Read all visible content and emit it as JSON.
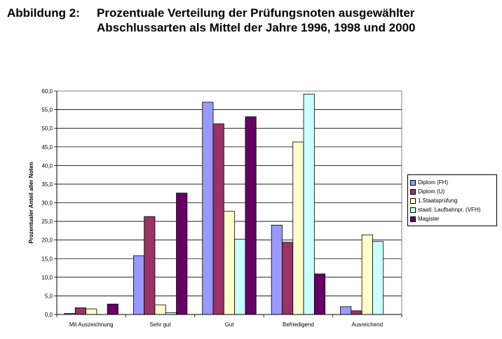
{
  "heading": {
    "label": "Abbildung 2:",
    "line1": "Prozentuale Verteilung der Prüfungsnoten ausgewählter",
    "line2": "Abschlussarten als Mittel der Jahre 1996, 1998 und 2000"
  },
  "chart_data": {
    "type": "bar",
    "title": "Prozentuale Verteilung der Prüfungsnoten ausgewählter Abschlussarten als Mittel der Jahre 1996, 1998 und 2000",
    "ylabel": "Prozentualer Anteil aller Noten",
    "xlabel": "",
    "ylim": [
      0,
      60
    ],
    "y_ticks": [
      "0,0",
      "5,0",
      "10,0",
      "15,0",
      "20,0",
      "25,0",
      "30,0",
      "35,0",
      "40,0",
      "45,0",
      "50,0",
      "55,0",
      "60,0"
    ],
    "grid": true,
    "legend_position": "right",
    "categories": [
      "Mit Auszeichnung",
      "Sehr gut",
      "Gut",
      "Befriedigend",
      "Ausreichend"
    ],
    "series": [
      {
        "name": "Diplom (FH)",
        "color": "#9999ff",
        "values": [
          0.3,
          15.8,
          57.0,
          24.0,
          2.1
        ]
      },
      {
        "name": "Diplom (U)",
        "color": "#993366",
        "values": [
          1.8,
          26.3,
          51.2,
          19.4,
          1.0
        ]
      },
      {
        "name": "1.Staatsprüfung",
        "color": "#ffffcc",
        "values": [
          1.5,
          2.6,
          27.7,
          46.3,
          21.4
        ]
      },
      {
        "name": "staatl. Laufbahnpr. (VFH)",
        "color": "#ccffff",
        "values": [
          0.0,
          0.5,
          20.2,
          59.2,
          19.6
        ]
      },
      {
        "name": "Magister",
        "color": "#660066",
        "values": [
          2.8,
          32.6,
          53.1,
          10.9,
          0.0
        ]
      }
    ]
  }
}
